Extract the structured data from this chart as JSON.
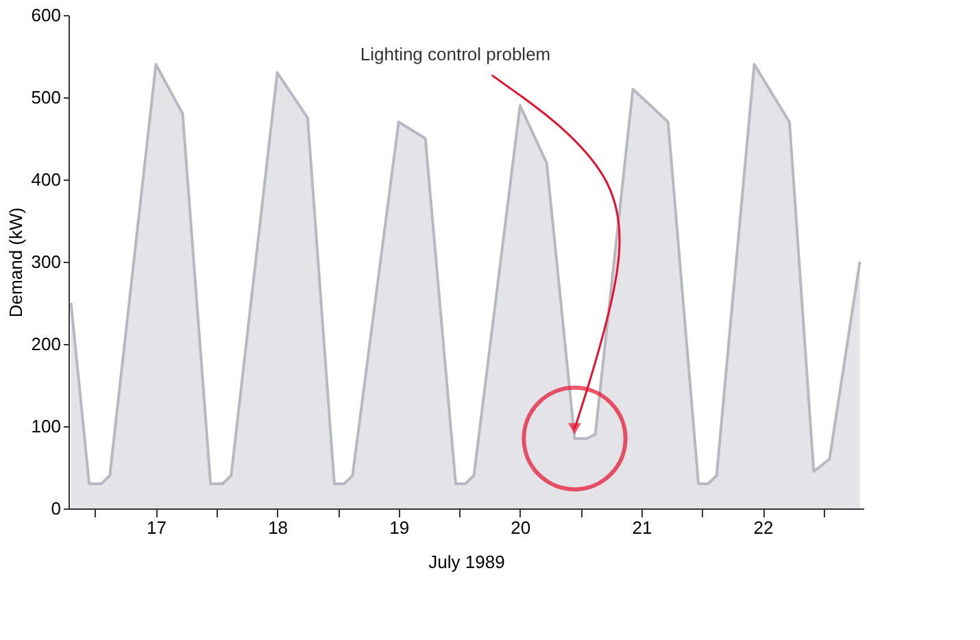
{
  "chart_data": {
    "type": "area",
    "xlabel": "July 1989",
    "ylabel": "Demand (kW)",
    "x": [
      16.8,
      16.95,
      17.05,
      17.12,
      17.5,
      17.72,
      17.95,
      18.05,
      18.12,
      18.5,
      18.75,
      18.97,
      19.05,
      19.12,
      19.5,
      19.72,
      19.97,
      20.05,
      20.12,
      20.5,
      20.72,
      20.95,
      21.05,
      21.12,
      21.43,
      21.72,
      21.97,
      22.05,
      22.12,
      22.43,
      22.72,
      22.92,
      23.05,
      23.3
    ],
    "series": [
      {
        "color": "#d9d9de",
        "values": [
          250,
          30,
          30,
          40,
          540,
          480,
          30,
          30,
          40,
          530,
          475,
          30,
          30,
          40,
          470,
          450,
          30,
          30,
          40,
          490,
          420,
          85,
          85,
          90,
          510,
          470,
          30,
          30,
          40,
          540,
          470,
          45,
          60,
          300
        ]
      }
    ],
    "xlim": [
      16.78,
      23.33
    ],
    "xticks": [
      {
        "value": 17,
        "label": null
      },
      {
        "value": 17.5,
        "label": "17"
      },
      {
        "value": 18,
        "label": null
      },
      {
        "value": 18.5,
        "label": "18"
      },
      {
        "value": 19,
        "label": null
      },
      {
        "value": 19.5,
        "label": "19"
      },
      {
        "value": 20,
        "label": null
      },
      {
        "value": 20.5,
        "label": "20"
      },
      {
        "value": 21,
        "label": null
      },
      {
        "value": 21.5,
        "label": "21"
      },
      {
        "value": 22,
        "label": null
      },
      {
        "value": 22.5,
        "label": "22"
      },
      {
        "value": 23,
        "label": null
      }
    ],
    "ylim": [
      0,
      600
    ],
    "yticks": [
      0,
      100,
      200,
      300,
      400,
      500,
      600
    ],
    "grid": false,
    "annotations": [
      {
        "text": "Lighting control problem",
        "x": 20.95,
        "y": 85
      }
    ]
  }
}
